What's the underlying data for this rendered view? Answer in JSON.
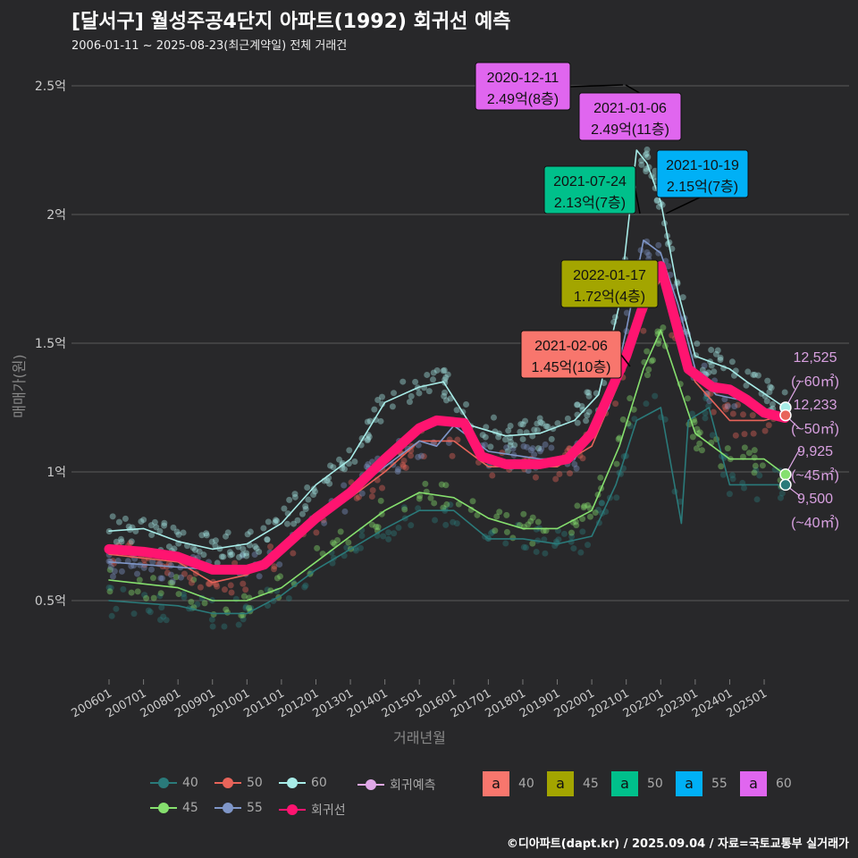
{
  "title": "[달서구] 월성주공4단지 아파트(1992) 회귀선 예측",
  "subtitle": "2006-01-11 ~ 2025-08-23(최근계약일) 전체 거래건",
  "footer": "©디아파트(dapt.kr) / 2025.09.04 / 자료=국토교통부 실거래가",
  "chart_data": {
    "type": "line",
    "title": "[달서구] 월성주공4단지 아파트(1992) 회귀선 예측",
    "xlabel": "거래년월",
    "ylabel": "매매가(원)",
    "ylim": [
      0.2,
      2.6
    ],
    "xlim": [
      2005.0,
      2026.2
    ],
    "yticks": [
      {
        "v": 0.5,
        "label": "0.5억"
      },
      {
        "v": 1,
        "label": "1억"
      },
      {
        "v": 1.5,
        "label": "1.5억"
      },
      {
        "v": 2,
        "label": "2억"
      },
      {
        "v": 2.5,
        "label": "2.5억"
      }
    ],
    "xticks": [
      "200601",
      "200701",
      "200801",
      "200901",
      "201001",
      "201101",
      "201201",
      "201301",
      "201401",
      "201501",
      "201601",
      "201701",
      "201801",
      "201901",
      "202001",
      "202101",
      "202201",
      "202301",
      "202401",
      "202501"
    ],
    "series": [
      {
        "name": "40",
        "color": "#2a7a7a",
        "points": [
          [
            2006,
            0.5
          ],
          [
            2008,
            0.48
          ],
          [
            2009,
            0.45
          ],
          [
            2010,
            0.45
          ],
          [
            2011,
            0.52
          ],
          [
            2012,
            0.62
          ],
          [
            2013,
            0.7
          ],
          [
            2014,
            0.78
          ],
          [
            2015,
            0.85
          ],
          [
            2016,
            0.85
          ],
          [
            2017,
            0.74
          ],
          [
            2018,
            0.74
          ],
          [
            2019,
            0.72
          ],
          [
            2020,
            0.75
          ],
          [
            2020.7,
            0.95
          ],
          [
            2021.3,
            1.2
          ],
          [
            2022,
            1.25
          ],
          [
            2022.6,
            0.8
          ],
          [
            2022.8,
            1.2
          ],
          [
            2023.4,
            1.25
          ],
          [
            2024,
            0.95
          ],
          [
            2025.6,
            0.95
          ]
        ]
      },
      {
        "name": "45",
        "color": "#86e06e",
        "points": [
          [
            2006,
            0.58
          ],
          [
            2008,
            0.55
          ],
          [
            2009,
            0.5
          ],
          [
            2010,
            0.5
          ],
          [
            2011,
            0.55
          ],
          [
            2012,
            0.65
          ],
          [
            2013,
            0.75
          ],
          [
            2014,
            0.85
          ],
          [
            2015,
            0.92
          ],
          [
            2016,
            0.9
          ],
          [
            2017,
            0.82
          ],
          [
            2018,
            0.78
          ],
          [
            2019,
            0.78
          ],
          [
            2020,
            0.85
          ],
          [
            2020.8,
            1.1
          ],
          [
            2021.5,
            1.4
          ],
          [
            2022,
            1.55
          ],
          [
            2022.5,
            1.35
          ],
          [
            2023,
            1.15
          ],
          [
            2024,
            1.05
          ],
          [
            2025,
            1.05
          ],
          [
            2025.6,
            0.99
          ]
        ]
      },
      {
        "name": "50",
        "color": "#e8645a",
        "points": [
          [
            2006,
            0.68
          ],
          [
            2008,
            0.65
          ],
          [
            2009,
            0.57
          ],
          [
            2010,
            0.6
          ],
          [
            2011,
            0.68
          ],
          [
            2012,
            0.82
          ],
          [
            2013,
            0.9
          ],
          [
            2014,
            1.0
          ],
          [
            2015,
            1.12
          ],
          [
            2016,
            1.12
          ],
          [
            2017,
            1.02
          ],
          [
            2018,
            1.02
          ],
          [
            2019,
            1.02
          ],
          [
            2020,
            1.1
          ],
          [
            2020.8,
            1.35
          ],
          [
            2021.3,
            1.55
          ],
          [
            2022,
            1.75
          ],
          [
            2022.5,
            1.5
          ],
          [
            2023,
            1.35
          ],
          [
            2024,
            1.2
          ],
          [
            2025,
            1.2
          ],
          [
            2025.6,
            1.22
          ]
        ]
      },
      {
        "name": "55",
        "color": "#7f96c8",
        "points": [
          [
            2006,
            0.65
          ],
          [
            2009,
            0.62
          ],
          [
            2010,
            0.62
          ],
          [
            2011,
            0.7
          ],
          [
            2013,
            0.92
          ],
          [
            2015,
            1.12
          ],
          [
            2015.5,
            1.1
          ],
          [
            2016,
            1.18
          ],
          [
            2017,
            1.08
          ],
          [
            2018.5,
            1.05
          ],
          [
            2019.5,
            1.05
          ],
          [
            2020.5,
            1.25
          ],
          [
            2021,
            1.55
          ],
          [
            2021.5,
            1.9
          ],
          [
            2022,
            1.85
          ],
          [
            2022.5,
            1.65
          ],
          [
            2023,
            1.4
          ],
          [
            2023.6,
            1.3
          ],
          [
            2024.3,
            1.28
          ]
        ]
      },
      {
        "name": "60",
        "color": "#a8ece8",
        "points": [
          [
            2006,
            0.77
          ],
          [
            2007,
            0.78
          ],
          [
            2008,
            0.73
          ],
          [
            2009,
            0.7
          ],
          [
            2010,
            0.72
          ],
          [
            2011,
            0.8
          ],
          [
            2012,
            0.95
          ],
          [
            2013,
            1.05
          ],
          [
            2014,
            1.27
          ],
          [
            2015,
            1.33
          ],
          [
            2015.7,
            1.35
          ],
          [
            2016.5,
            1.18
          ],
          [
            2017.5,
            1.14
          ],
          [
            2018.5,
            1.15
          ],
          [
            2019.5,
            1.2
          ],
          [
            2020.2,
            1.3
          ],
          [
            2020.8,
            1.65
          ],
          [
            2021.3,
            2.25
          ],
          [
            2021.6,
            2.2
          ],
          [
            2022,
            2.05
          ],
          [
            2022.5,
            1.7
          ],
          [
            2023,
            1.45
          ],
          [
            2024,
            1.4
          ],
          [
            2024.5,
            1.35
          ],
          [
            2025.6,
            1.25
          ]
        ]
      },
      {
        "name": "회귀선",
        "color": "#ff1470",
        "points": [
          [
            2006,
            0.7
          ],
          [
            2007,
            0.69
          ],
          [
            2008,
            0.67
          ],
          [
            2009,
            0.62
          ],
          [
            2010,
            0.62
          ],
          [
            2010.5,
            0.64
          ],
          [
            2011,
            0.7
          ],
          [
            2012,
            0.82
          ],
          [
            2013,
            0.92
          ],
          [
            2014,
            1.05
          ],
          [
            2015,
            1.17
          ],
          [
            2015.5,
            1.2
          ],
          [
            2016.3,
            1.19
          ],
          [
            2016.8,
            1.06
          ],
          [
            2017.5,
            1.03
          ],
          [
            2018.5,
            1.03
          ],
          [
            2019.3,
            1.05
          ],
          [
            2020,
            1.15
          ],
          [
            2020.5,
            1.3
          ],
          [
            2021,
            1.45
          ],
          [
            2021.5,
            1.65
          ],
          [
            2022,
            1.8
          ],
          [
            2022.4,
            1.6
          ],
          [
            2022.8,
            1.4
          ],
          [
            2023.5,
            1.33
          ],
          [
            2024,
            1.32
          ],
          [
            2024.5,
            1.28
          ],
          [
            2025,
            1.23
          ],
          [
            2025.6,
            1.21
          ]
        ]
      }
    ],
    "predictions": [
      {
        "value": "12,525",
        "area": "(~60㎡)",
        "y": 1.25,
        "color": "#a8ece8"
      },
      {
        "value": "12,233",
        "area": "(~50㎡)",
        "y": 1.22,
        "color": "#e8645a"
      },
      {
        "value": "9,925",
        "area": "(~45㎡)",
        "y": 0.99,
        "color": "#86e06e"
      },
      {
        "value": "9,500",
        "area": "(~40㎡)",
        "y": 0.95,
        "color": "#2a7a7a"
      }
    ],
    "annotations": [
      {
        "date": "2020-12-11",
        "price": "2.49억(8층)",
        "color": "#e066ef"
      },
      {
        "date": "2021-01-06",
        "price": "2.49억(11층)",
        "color": "#e066ef"
      },
      {
        "date": "2021-07-24",
        "price": "2.13억(7층)",
        "color": "#00c08b"
      },
      {
        "date": "2021-10-19",
        "price": "2.15억(7층)",
        "color": "#00b0f6"
      },
      {
        "date": "2022-01-17",
        "price": "1.72억(4층)",
        "color": "#a3a500"
      },
      {
        "date": "2021-02-06",
        "price": "1.45억(10층)",
        "color": "#f8766d"
      }
    ],
    "legend": {
      "lines": [
        {
          "label": "40",
          "color": "#2a7a7a"
        },
        {
          "label": "50",
          "color": "#e8645a"
        },
        {
          "label": "60",
          "color": "#a8ece8"
        },
        {
          "label": "회귀예측",
          "color": "#e0a8e8"
        },
        {
          "label": "45",
          "color": "#86e06e"
        },
        {
          "label": "55",
          "color": "#7f96c8"
        },
        {
          "label": "회귀선",
          "color": "#ff1470"
        }
      ],
      "boxes": [
        {
          "glyph": "a",
          "label": "40",
          "color": "#f8766d"
        },
        {
          "glyph": "a",
          "label": "45",
          "color": "#a3a500"
        },
        {
          "glyph": "a",
          "label": "50",
          "color": "#00c08b"
        },
        {
          "glyph": "a",
          "label": "55",
          "color": "#00b0f6"
        },
        {
          "glyph": "a",
          "label": "60",
          "color": "#e066ef"
        }
      ]
    }
  }
}
